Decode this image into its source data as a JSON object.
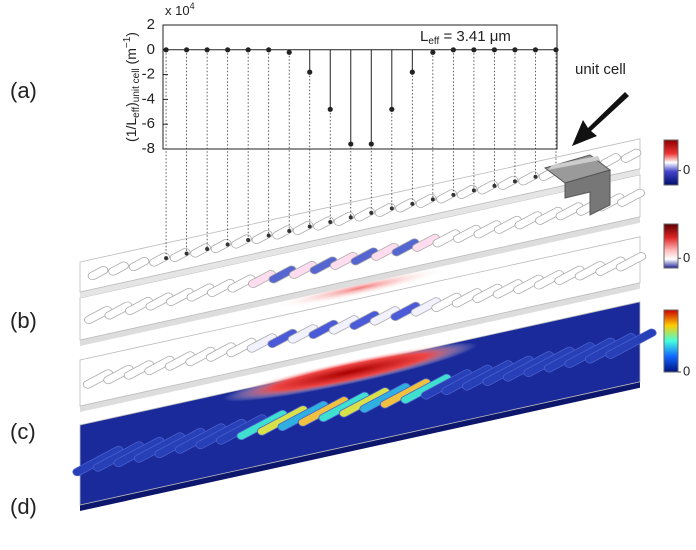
{
  "chart_data": {
    "type": "stem",
    "multiplier_parts": [
      "x 10",
      "4"
    ],
    "y_label_parts": [
      "(1/L",
      "eff",
      ")",
      "unit cell",
      " (m",
      "−1",
      ")"
    ],
    "annotation_parts": [
      "L",
      "eff",
      " = 3.41 μm"
    ],
    "x": [
      1,
      2,
      3,
      4,
      5,
      6,
      7,
      8,
      9,
      10,
      11,
      12,
      13,
      14,
      15,
      16,
      17,
      18,
      19,
      20
    ],
    "values": [
      0,
      0,
      0,
      0,
      0,
      0,
      -0.2,
      -1.8,
      -4.8,
      -7.6,
      -7.6,
      -4.8,
      -1.8,
      -0.2,
      0,
      0,
      0,
      0,
      0,
      0
    ],
    "color": "#222222",
    "xlim": [
      0.85,
      20.05
    ],
    "ylim": [
      -8,
      2
    ],
    "yticks": [
      2,
      0,
      -2,
      -4,
      -6,
      -8
    ],
    "panel_labels": [
      "(a)",
      "(b)",
      "(c)",
      "(d)"
    ],
    "unit_cell_label": "unit cell",
    "colorbars": [
      {
        "ticks": [
          0
        ]
      },
      {
        "ticks": [
          0
        ]
      },
      {
        "ticks": [
          0
        ]
      }
    ]
  }
}
